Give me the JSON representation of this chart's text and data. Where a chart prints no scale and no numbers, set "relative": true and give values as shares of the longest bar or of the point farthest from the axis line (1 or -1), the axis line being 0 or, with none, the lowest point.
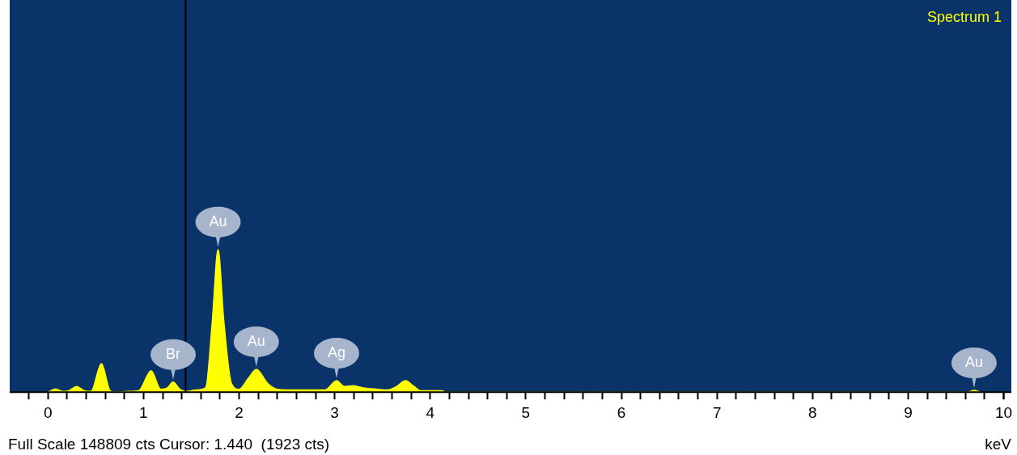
{
  "chart_data": {
    "type": "area",
    "title": "Spectrum 1",
    "xlabel": "keV",
    "relative": true,
    "marker": "none",
    "grid": false,
    "legend": false,
    "x": [
      0.0,
      0.08,
      0.15,
      0.22,
      0.3,
      0.38,
      0.45,
      0.56,
      0.65,
      0.7,
      0.85,
      0.95,
      1.08,
      1.18,
      1.25,
      1.31,
      1.38,
      1.45,
      1.55,
      1.65,
      1.72,
      1.78,
      1.84,
      1.92,
      2.0,
      2.1,
      2.18,
      2.3,
      2.4,
      2.6,
      2.9,
      3.02,
      3.1,
      3.19,
      3.3,
      3.45,
      3.55,
      3.65,
      3.74,
      3.83,
      3.9,
      4.0,
      4.13,
      4.15,
      9.62,
      9.69,
      9.76
    ],
    "series": [
      {
        "color": "#ffff00",
        "values": [
          0,
          0.023,
          0.005,
          0.01,
          0.04,
          0.01,
          0.005,
          0.2,
          0.01,
          0,
          0.005,
          0.01,
          0.15,
          0.02,
          0.03,
          0.07,
          0.02,
          0.005,
          0.015,
          0.03,
          0.5,
          1,
          0.5,
          0.06,
          0.02,
          0.1,
          0.16,
          0.06,
          0.02,
          0.015,
          0.015,
          0.08,
          0.04,
          0.045,
          0.03,
          0.02,
          0.015,
          0.04,
          0.08,
          0.04,
          0.01,
          0.01,
          0.01,
          0,
          0,
          0.012,
          0
        ]
      }
    ],
    "xlim": [
      -0.4,
      10.08
    ],
    "xticks": [
      0,
      1,
      2,
      3,
      4,
      5,
      6,
      7,
      8,
      9,
      10,
      {
        "value": -0.2,
        "label": null
      },
      {
        "value": 0.2,
        "label": null
      },
      {
        "value": 0.4,
        "label": null
      },
      {
        "value": 0.6,
        "label": null
      },
      {
        "value": 0.8,
        "label": null
      },
      {
        "value": 1.2,
        "label": null
      },
      {
        "value": 1.4,
        "label": null
      },
      {
        "value": 1.6,
        "label": null
      },
      {
        "value": 1.8,
        "label": null
      },
      {
        "value": 2.2,
        "label": null
      },
      {
        "value": 2.4,
        "label": null
      },
      {
        "value": 2.6,
        "label": null
      },
      {
        "value": 2.8,
        "label": null
      },
      {
        "value": 3.2,
        "label": null
      },
      {
        "value": 3.4,
        "label": null
      },
      {
        "value": 3.6,
        "label": null
      },
      {
        "value": 3.8,
        "label": null
      },
      {
        "value": 4.2,
        "label": null
      },
      {
        "value": 4.4,
        "label": null
      },
      {
        "value": 4.6,
        "label": null
      },
      {
        "value": 4.8,
        "label": null
      },
      {
        "value": 5.2,
        "label": null
      },
      {
        "value": 5.4,
        "label": null
      },
      {
        "value": 5.6,
        "label": null
      },
      {
        "value": 5.8,
        "label": null
      },
      {
        "value": 6.2,
        "label": null
      },
      {
        "value": 6.4,
        "label": null
      },
      {
        "value": 6.6,
        "label": null
      },
      {
        "value": 6.8,
        "label": null
      },
      {
        "value": 7.2,
        "label": null
      },
      {
        "value": 7.4,
        "label": null
      },
      {
        "value": 7.6,
        "label": null
      },
      {
        "value": 7.8,
        "label": null
      },
      {
        "value": 8.2,
        "label": null
      },
      {
        "value": 8.4,
        "label": null
      },
      {
        "value": 8.6,
        "label": null
      },
      {
        "value": 8.8,
        "label": null
      },
      {
        "value": 9.2,
        "label": null
      },
      {
        "value": 9.4,
        "label": null
      },
      {
        "value": 9.6,
        "label": null
      },
      {
        "value": 9.8,
        "label": null
      },
      {
        "value": 10.0,
        "label": null
      }
    ],
    "ref_lines": [
      {
        "axis": "x",
        "value": 1.44,
        "color": "#000000"
      }
    ],
    "annotations": [
      {
        "text": "Br",
        "x": 1.31,
        "y": 0.07
      },
      {
        "text": "Au",
        "x": 1.78,
        "y": 1
      },
      {
        "text": "Au",
        "x": 2.18,
        "y": 0.16
      },
      {
        "text": "Ag",
        "x": 3.02,
        "y": 0.08
      },
      {
        "text": "Au",
        "x": 9.69,
        "y": 0.012
      },
      "Full Scale 148809 cts Cursor: 1.440  (1923 cts)"
    ]
  }
}
